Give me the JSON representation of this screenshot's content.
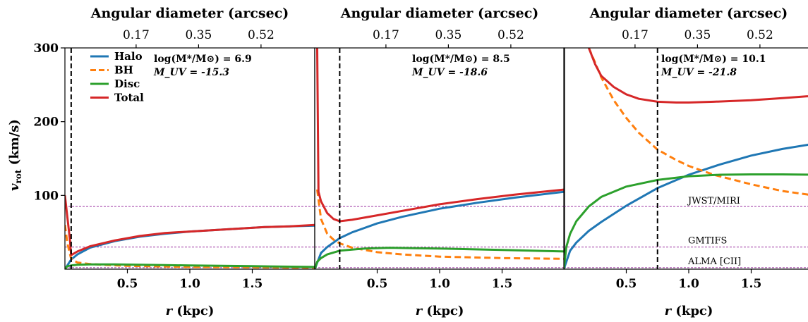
{
  "figure": {
    "ylabel_main": "v",
    "ylabel_sub": "rot",
    "ylabel_unit": " (km/s)",
    "xlabel_main": "r",
    "xlabel_unit": " (kpc)",
    "top_axis_label": "Angular diameter (arcsec)",
    "top_ticks": [
      "0.17",
      "0.35",
      "0.52"
    ],
    "legend": [
      {
        "key": "halo",
        "label": "Halo",
        "color": "#1f77b4",
        "dash": false
      },
      {
        "key": "bh",
        "label": "BH",
        "color": "#ff7f0e",
        "dash": true
      },
      {
        "key": "disc",
        "label": "Disc",
        "color": "#2ca02c",
        "dash": false
      },
      {
        "key": "total",
        "label": "Total",
        "color": "#d62728",
        "dash": false
      }
    ],
    "reference_lines": [
      {
        "label": "JWST/MIRI",
        "value": 85,
        "color": "#9b30a0"
      },
      {
        "label": "GMTIFS",
        "value": 30,
        "color": "#9b30a0"
      },
      {
        "label": "ALMA [CII]",
        "value": 2,
        "color": "#9b30a0"
      }
    ]
  },
  "chart_data": [
    {
      "type": "line",
      "annotation_mass": "log(M*/M⊙) = 6.9",
      "annotation_muv": "M_UV = -15.3",
      "xlim": [
        0,
        2.0
      ],
      "ylim": [
        0,
        300
      ],
      "xticks": [
        "0.5",
        "1.0",
        "1.5"
      ],
      "yticks": [
        "100",
        "200",
        "300"
      ],
      "vline_x": 0.05,
      "series": [
        {
          "name": "Halo",
          "x": [
            0.0,
            0.05,
            0.1,
            0.2,
            0.4,
            0.6,
            0.8,
            1.0,
            1.2,
            1.4,
            1.6,
            1.8,
            2.0
          ],
          "y": [
            0,
            13,
            20,
            29,
            38,
            44,
            48,
            51,
            53,
            55,
            57,
            58,
            59
          ]
        },
        {
          "name": "BH",
          "x": [
            0.0,
            0.02,
            0.05,
            0.1,
            0.2,
            0.3,
            0.5,
            0.8,
            1.0,
            1.5,
            2.0
          ],
          "y": [
            60,
            35,
            14,
            9,
            7,
            6,
            4.5,
            3.5,
            3,
            2.5,
            2
          ]
        },
        {
          "name": "Disc",
          "x": [
            0.0,
            0.02,
            0.05,
            0.1,
            0.2,
            0.4,
            0.6,
            0.8,
            1.0,
            1.5,
            2.0
          ],
          "y": [
            0,
            4,
            5,
            6,
            6.5,
            6.5,
            6,
            5.5,
            5,
            4,
            3
          ]
        },
        {
          "name": "Total",
          "x": [
            0.0,
            0.02,
            0.04,
            0.05,
            0.1,
            0.2,
            0.4,
            0.6,
            0.8,
            1.0,
            1.2,
            1.4,
            1.6,
            1.8,
            2.0
          ],
          "y": [
            100,
            70,
            40,
            19,
            24,
            31,
            39,
            45,
            49,
            51,
            53,
            55,
            57,
            58,
            60
          ]
        }
      ]
    },
    {
      "type": "line",
      "annotation_mass": "log(M*/M⊙) = 8.5",
      "annotation_muv": "M_UV = -18.6",
      "xlim": [
        0,
        2.0
      ],
      "ylim": [
        0,
        300
      ],
      "xticks": [
        "0.5",
        "1.0",
        "1.5"
      ],
      "yticks": [],
      "vline_x": 0.2,
      "series": [
        {
          "name": "Halo",
          "x": [
            0.0,
            0.05,
            0.1,
            0.2,
            0.3,
            0.5,
            0.7,
            1.0,
            1.3,
            1.6,
            2.0
          ],
          "y": [
            0,
            22,
            30,
            42,
            50,
            62,
            71,
            82,
            90,
            97,
            105
          ]
        },
        {
          "name": "BH",
          "x": [
            0.02,
            0.05,
            0.1,
            0.15,
            0.2,
            0.3,
            0.5,
            0.7,
            1.0,
            1.5,
            2.0
          ],
          "y": [
            108,
            68,
            48,
            40,
            35,
            29,
            23,
            20,
            17,
            15,
            14
          ]
        },
        {
          "name": "Disc",
          "x": [
            0.0,
            0.02,
            0.05,
            0.1,
            0.2,
            0.4,
            0.6,
            0.8,
            1.0,
            1.5,
            2.0
          ],
          "y": [
            0,
            10,
            15,
            20,
            25,
            28,
            29,
            28.5,
            28,
            26,
            24
          ]
        },
        {
          "name": "Total",
          "x": [
            0.02,
            0.03,
            0.05,
            0.1,
            0.15,
            0.2,
            0.3,
            0.5,
            0.7,
            1.0,
            1.3,
            1.6,
            2.0
          ],
          "y": [
            300,
            105,
            92,
            76,
            68,
            65,
            67,
            73,
            79,
            88,
            95,
            101,
            108
          ]
        }
      ]
    },
    {
      "type": "line",
      "annotation_mass": "log(M*/M⊙) = 10.1",
      "annotation_muv": "M_UV = -21.8",
      "xlim": [
        0,
        2.0
      ],
      "ylim": [
        0,
        300
      ],
      "xticks": [
        "0.5",
        "1.0",
        "1.5"
      ],
      "yticks": [],
      "vline_x": 0.75,
      "series": [
        {
          "name": "Halo",
          "x": [
            0.0,
            0.05,
            0.1,
            0.2,
            0.3,
            0.5,
            0.75,
            1.0,
            1.25,
            1.5,
            1.75,
            2.0
          ],
          "y": [
            0,
            25,
            36,
            52,
            64,
            86,
            110,
            128,
            142,
            154,
            163,
            170
          ]
        },
        {
          "name": "BH",
          "x": [
            0.2,
            0.25,
            0.3,
            0.4,
            0.5,
            0.6,
            0.75,
            0.9,
            1.0,
            1.2,
            1.5,
            1.75,
            2.0
          ],
          "y": [
            300,
            280,
            260,
            229,
            205,
            185,
            162,
            148,
            140,
            128,
            115,
            106,
            100
          ]
        },
        {
          "name": "Disc",
          "x": [
            0.0,
            0.02,
            0.05,
            0.1,
            0.2,
            0.3,
            0.5,
            0.75,
            1.0,
            1.25,
            1.5,
            1.75,
            2.0
          ],
          "y": [
            0,
            30,
            48,
            65,
            85,
            98,
            112,
            121,
            126,
            128,
            128.5,
            128.5,
            128
          ]
        },
        {
          "name": "Total",
          "x": [
            0.2,
            0.25,
            0.3,
            0.4,
            0.5,
            0.6,
            0.75,
            0.9,
            1.0,
            1.2,
            1.5,
            1.75,
            2.0
          ],
          "y": [
            300,
            278,
            262,
            247,
            237,
            231,
            227,
            226,
            226,
            227,
            229,
            232,
            235
          ]
        }
      ]
    }
  ]
}
